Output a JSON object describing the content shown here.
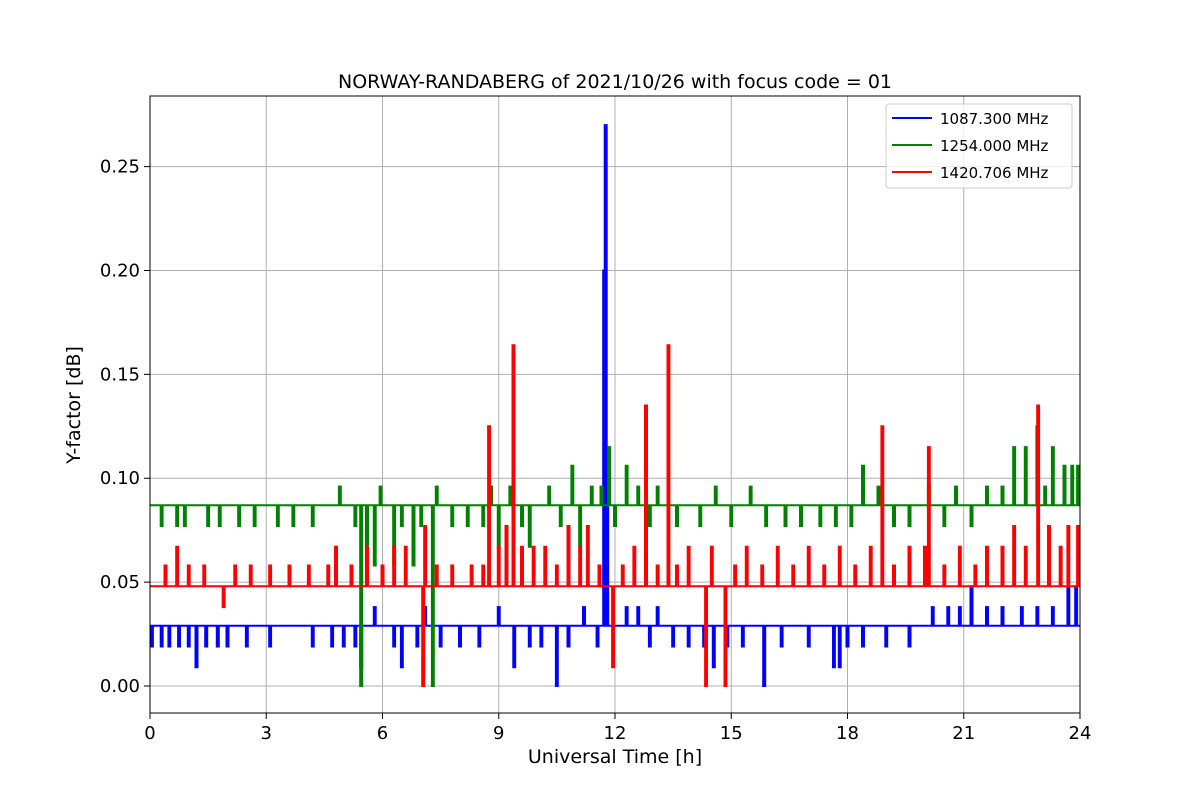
{
  "chart_data": {
    "type": "line",
    "title": "NORWAY-RANDABERG of 2021/10/26 with focus code = 01",
    "xlabel": "Universal Time [h]",
    "ylabel": "Y-factor [dB]",
    "xlim": [
      0,
      24
    ],
    "ylim": [
      -0.013,
      0.284
    ],
    "x_ticks": [
      0,
      3,
      6,
      9,
      12,
      15,
      18,
      21,
      24
    ],
    "x_tick_labels": [
      "0",
      "3",
      "6",
      "9",
      "12",
      "15",
      "18",
      "21",
      "24"
    ],
    "y_ticks": [
      0.0,
      0.05,
      0.1,
      0.15,
      0.2,
      0.25
    ],
    "y_tick_labels": [
      "0.00",
      "0.05",
      "0.10",
      "0.15",
      "0.20",
      "0.25"
    ],
    "grid": true,
    "legend_position": "top-right",
    "series": [
      {
        "name": "1087.300 MHz",
        "color": "#0000ff",
        "baseline": 0.029,
        "spikes": [
          [
            0.05,
            0.019
          ],
          [
            0.3,
            0.019
          ],
          [
            0.5,
            0.019
          ],
          [
            0.75,
            0.019
          ],
          [
            1.0,
            0.019
          ],
          [
            1.2,
            0.009
          ],
          [
            1.45,
            0.019
          ],
          [
            1.75,
            0.019
          ],
          [
            2.0,
            0.019
          ],
          [
            2.5,
            0.019
          ],
          [
            3.1,
            0.019
          ],
          [
            4.2,
            0.019
          ],
          [
            4.7,
            0.019
          ],
          [
            5.0,
            0.019
          ],
          [
            5.3,
            0.019
          ],
          [
            5.45,
            0.009
          ],
          [
            5.8,
            0.038
          ],
          [
            6.3,
            0.019
          ],
          [
            6.5,
            0.009
          ],
          [
            6.9,
            0.019
          ],
          [
            7.1,
            0.038
          ],
          [
            7.5,
            0.019
          ],
          [
            8.0,
            0.019
          ],
          [
            8.5,
            0.019
          ],
          [
            9.0,
            0.038
          ],
          [
            9.4,
            0.009
          ],
          [
            9.8,
            0.019
          ],
          [
            10.1,
            0.019
          ],
          [
            10.5,
            0.0
          ],
          [
            10.8,
            0.019
          ],
          [
            11.2,
            0.038
          ],
          [
            11.55,
            0.019
          ],
          [
            11.72,
            0.2
          ],
          [
            11.76,
            0.27
          ],
          [
            11.8,
            0.086
          ],
          [
            12.3,
            0.038
          ],
          [
            12.6,
            0.038
          ],
          [
            12.9,
            0.019
          ],
          [
            13.1,
            0.038
          ],
          [
            13.5,
            0.019
          ],
          [
            13.9,
            0.019
          ],
          [
            14.3,
            0.019
          ],
          [
            14.55,
            0.009
          ],
          [
            14.9,
            0.019
          ],
          [
            15.3,
            0.019
          ],
          [
            15.85,
            0.0
          ],
          [
            16.3,
            0.019
          ],
          [
            17.0,
            0.019
          ],
          [
            17.65,
            0.009
          ],
          [
            17.8,
            0.009
          ],
          [
            18.0,
            0.019
          ],
          [
            18.4,
            0.019
          ],
          [
            19.0,
            0.019
          ],
          [
            19.6,
            0.019
          ],
          [
            20.2,
            0.038
          ],
          [
            20.6,
            0.038
          ],
          [
            20.9,
            0.038
          ],
          [
            21.2,
            0.048
          ],
          [
            21.6,
            0.038
          ],
          [
            22.0,
            0.038
          ],
          [
            22.5,
            0.038
          ],
          [
            22.9,
            0.038
          ],
          [
            23.3,
            0.038
          ],
          [
            23.7,
            0.048
          ],
          [
            23.9,
            0.048
          ]
        ]
      },
      {
        "name": "1254.000 MHz",
        "color": "#008000",
        "baseline": 0.087,
        "spikes": [
          [
            0.3,
            0.077
          ],
          [
            0.7,
            0.077
          ],
          [
            0.9,
            0.077
          ],
          [
            1.5,
            0.077
          ],
          [
            1.8,
            0.077
          ],
          [
            2.3,
            0.077
          ],
          [
            2.7,
            0.077
          ],
          [
            3.3,
            0.077
          ],
          [
            3.7,
            0.077
          ],
          [
            4.2,
            0.077
          ],
          [
            4.9,
            0.096
          ],
          [
            5.3,
            0.077
          ],
          [
            5.45,
            0.0
          ],
          [
            5.6,
            0.067
          ],
          [
            5.8,
            0.058
          ],
          [
            5.95,
            0.096
          ],
          [
            6.3,
            0.058
          ],
          [
            6.5,
            0.077
          ],
          [
            6.8,
            0.058
          ],
          [
            7.0,
            0.077
          ],
          [
            7.3,
            0.0
          ],
          [
            7.4,
            0.096
          ],
          [
            7.8,
            0.077
          ],
          [
            8.2,
            0.077
          ],
          [
            8.6,
            0.077
          ],
          [
            8.8,
            0.096
          ],
          [
            9.0,
            0.067
          ],
          [
            9.3,
            0.096
          ],
          [
            9.6,
            0.077
          ],
          [
            9.8,
            0.067
          ],
          [
            10.3,
            0.096
          ],
          [
            10.6,
            0.077
          ],
          [
            10.9,
            0.106
          ],
          [
            11.1,
            0.067
          ],
          [
            11.4,
            0.096
          ],
          [
            11.65,
            0.096
          ],
          [
            11.85,
            0.115
          ],
          [
            12.0,
            0.077
          ],
          [
            12.3,
            0.106
          ],
          [
            12.6,
            0.096
          ],
          [
            12.9,
            0.077
          ],
          [
            13.1,
            0.096
          ],
          [
            13.6,
            0.077
          ],
          [
            14.2,
            0.077
          ],
          [
            14.6,
            0.096
          ],
          [
            15.0,
            0.077
          ],
          [
            15.5,
            0.096
          ],
          [
            15.9,
            0.077
          ],
          [
            16.4,
            0.077
          ],
          [
            16.8,
            0.077
          ],
          [
            17.3,
            0.077
          ],
          [
            17.7,
            0.077
          ],
          [
            18.1,
            0.077
          ],
          [
            18.4,
            0.106
          ],
          [
            18.8,
            0.096
          ],
          [
            19.2,
            0.077
          ],
          [
            19.6,
            0.077
          ],
          [
            20.1,
            0.096
          ],
          [
            20.5,
            0.077
          ],
          [
            20.8,
            0.096
          ],
          [
            21.2,
            0.077
          ],
          [
            21.6,
            0.096
          ],
          [
            22.0,
            0.096
          ],
          [
            22.3,
            0.115
          ],
          [
            22.6,
            0.115
          ],
          [
            22.9,
            0.125
          ],
          [
            23.1,
            0.096
          ],
          [
            23.3,
            0.115
          ],
          [
            23.6,
            0.106
          ],
          [
            23.8,
            0.106
          ],
          [
            23.95,
            0.106
          ]
        ]
      },
      {
        "name": "1420.706 MHz",
        "color": "#ff0000",
        "baseline": 0.048,
        "spikes": [
          [
            0.4,
            0.058
          ],
          [
            0.7,
            0.067
          ],
          [
            1.0,
            0.058
          ],
          [
            1.4,
            0.058
          ],
          [
            1.9,
            0.038
          ],
          [
            2.2,
            0.058
          ],
          [
            2.6,
            0.058
          ],
          [
            3.1,
            0.058
          ],
          [
            3.6,
            0.058
          ],
          [
            4.1,
            0.058
          ],
          [
            4.6,
            0.058
          ],
          [
            4.8,
            0.067
          ],
          [
            5.2,
            0.058
          ],
          [
            5.6,
            0.067
          ],
          [
            6.0,
            0.058
          ],
          [
            6.3,
            0.067
          ],
          [
            6.6,
            0.067
          ],
          [
            7.05,
            0.0
          ],
          [
            7.1,
            0.077
          ],
          [
            7.4,
            0.058
          ],
          [
            7.8,
            0.058
          ],
          [
            8.3,
            0.058
          ],
          [
            8.6,
            0.058
          ],
          [
            8.75,
            0.125
          ],
          [
            9.0,
            0.067
          ],
          [
            9.2,
            0.077
          ],
          [
            9.38,
            0.164
          ],
          [
            9.6,
            0.067
          ],
          [
            9.9,
            0.067
          ],
          [
            10.2,
            0.067
          ],
          [
            10.5,
            0.058
          ],
          [
            10.8,
            0.077
          ],
          [
            11.1,
            0.067
          ],
          [
            11.3,
            0.077
          ],
          [
            11.6,
            0.058
          ],
          [
            11.95,
            0.009
          ],
          [
            12.2,
            0.058
          ],
          [
            12.5,
            0.067
          ],
          [
            12.8,
            0.135
          ],
          [
            13.1,
            0.058
          ],
          [
            13.38,
            0.164
          ],
          [
            13.6,
            0.058
          ],
          [
            13.9,
            0.067
          ],
          [
            14.35,
            0.0
          ],
          [
            14.5,
            0.067
          ],
          [
            14.85,
            0.0
          ],
          [
            15.1,
            0.058
          ],
          [
            15.4,
            0.067
          ],
          [
            15.8,
            0.058
          ],
          [
            16.2,
            0.067
          ],
          [
            16.6,
            0.058
          ],
          [
            17.0,
            0.067
          ],
          [
            17.4,
            0.058
          ],
          [
            17.8,
            0.067
          ],
          [
            18.2,
            0.058
          ],
          [
            18.6,
            0.067
          ],
          [
            18.9,
            0.125
          ],
          [
            19.2,
            0.058
          ],
          [
            19.6,
            0.067
          ],
          [
            20.0,
            0.067
          ],
          [
            20.1,
            0.115
          ],
          [
            20.5,
            0.058
          ],
          [
            20.9,
            0.067
          ],
          [
            21.3,
            0.058
          ],
          [
            21.6,
            0.067
          ],
          [
            22.0,
            0.067
          ],
          [
            22.3,
            0.077
          ],
          [
            22.6,
            0.067
          ],
          [
            22.92,
            0.135
          ],
          [
            23.2,
            0.077
          ],
          [
            23.5,
            0.067
          ],
          [
            23.7,
            0.077
          ],
          [
            23.95,
            0.077
          ]
        ]
      }
    ]
  }
}
